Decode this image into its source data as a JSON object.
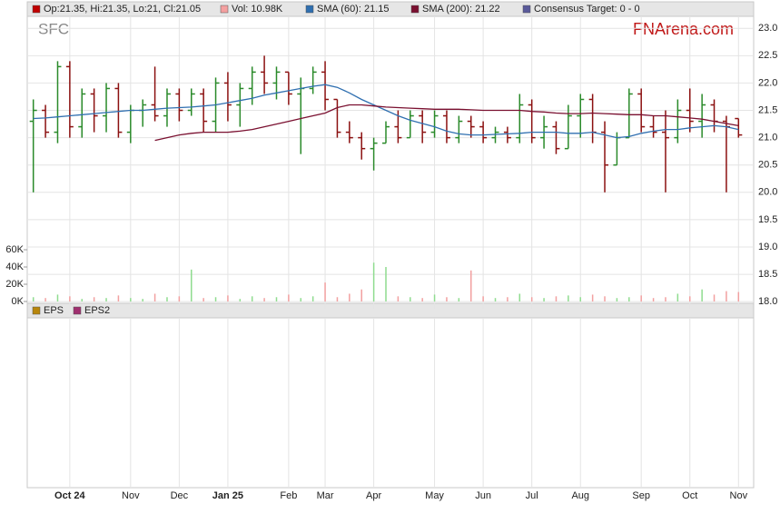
{
  "chart_data": {
    "type": "ohlc",
    "ticker": "SFC",
    "watermark": "FNArena.com",
    "legend": [
      {
        "label": "Op:21.35, Hi:21.35, Lo:21, Cl:21.05",
        "color": "#c00000"
      },
      {
        "label": "Vol: 10.98K",
        "color": "#f4a0a0"
      },
      {
        "label": "SMA (60): 21.15",
        "color": "#2f6fb0"
      },
      {
        "label": "SMA (200): 21.22",
        "color": "#7a1030"
      },
      {
        "label": "Consensus Target: 0 - 0",
        "color": "#5a5a9a"
      }
    ],
    "lower_legend": [
      {
        "label": "EPS",
        "color": "#b8860b"
      },
      {
        "label": "EPS2",
        "color": "#a03070"
      }
    ],
    "categories": [
      null,
      null,
      null,
      "Oct 24",
      null,
      null,
      null,
      null,
      "Nov",
      null,
      null,
      null,
      "Dec",
      null,
      null,
      null,
      "Jan 25",
      null,
      null,
      null,
      null,
      "Feb",
      null,
      null,
      "Mar",
      null,
      null,
      null,
      "Apr",
      null,
      null,
      null,
      null,
      "May",
      null,
      null,
      null,
      "Jun",
      null,
      null,
      null,
      "Jul",
      null,
      null,
      null,
      "Aug",
      null,
      null,
      null,
      null,
      "Sep",
      null,
      null,
      null,
      "Oct",
      null,
      null,
      null,
      "Nov"
    ],
    "open": [
      21.3,
      21.5,
      21.1,
      22.3,
      21.2,
      21.8,
      21.4,
      21.9,
      21.1,
      21.5,
      21.6,
      21.4,
      21.8,
      21.5,
      21.8,
      21.3,
      22.0,
      21.6,
      21.9,
      22.2,
      22.0,
      22.2,
      21.8,
      21.9,
      22.2,
      21.7,
      21.1,
      21.0,
      20.8,
      20.9,
      21.2,
      21.0,
      21.4,
      21.1,
      21.4,
      21.0,
      21.3,
      21.2,
      21.0,
      21.1,
      21.0,
      21.6,
      21.0,
      21.2,
      20.8,
      21.4,
      21.7,
      21.1,
      20.5,
      21.0,
      21.8,
      21.2,
      21.1,
      21.0,
      21.5,
      21.3,
      21.6,
      21.3,
      21.35
    ],
    "high": [
      21.7,
      21.6,
      22.4,
      22.4,
      21.9,
      21.9,
      22.0,
      22.0,
      21.6,
      21.7,
      22.3,
      21.9,
      21.9,
      21.9,
      21.9,
      22.1,
      22.2,
      22.0,
      22.3,
      22.5,
      22.3,
      22.2,
      22.1,
      22.3,
      22.4,
      21.7,
      21.3,
      21.1,
      21.0,
      21.3,
      21.5,
      21.5,
      21.5,
      21.5,
      21.5,
      21.4,
      21.4,
      21.3,
      21.2,
      21.2,
      21.8,
      21.7,
      21.4,
      21.3,
      21.6,
      21.8,
      21.8,
      21.3,
      21.1,
      21.9,
      21.9,
      21.4,
      21.5,
      21.7,
      21.9,
      21.8,
      21.7,
      21.4,
      21.35
    ],
    "low": [
      20.0,
      21.0,
      20.9,
      21.0,
      21.0,
      21.1,
      21.1,
      21.0,
      20.9,
      21.2,
      21.3,
      21.2,
      21.3,
      21.4,
      21.1,
      21.1,
      21.3,
      21.2,
      21.6,
      21.8,
      21.7,
      21.6,
      20.7,
      21.8,
      21.5,
      21.0,
      20.9,
      20.6,
      20.4,
      20.9,
      20.9,
      21.0,
      20.9,
      21.0,
      20.9,
      20.9,
      21.0,
      20.9,
      20.9,
      20.9,
      20.9,
      20.9,
      20.8,
      20.7,
      20.8,
      21.0,
      20.9,
      20.0,
      20.5,
      21.0,
      21.1,
      21.0,
      20.0,
      20.9,
      21.1,
      21.0,
      21.1,
      20.0,
      21.0
    ],
    "close": [
      21.5,
      21.1,
      22.3,
      21.2,
      21.8,
      21.4,
      21.9,
      21.1,
      21.5,
      21.6,
      21.4,
      21.8,
      21.5,
      21.8,
      21.3,
      22.0,
      21.6,
      21.9,
      22.2,
      22.0,
      22.2,
      21.8,
      21.9,
      22.2,
      21.7,
      21.1,
      21.0,
      20.8,
      20.9,
      21.2,
      21.0,
      21.4,
      21.1,
      21.4,
      21.0,
      21.3,
      21.2,
      21.0,
      21.1,
      21.0,
      21.6,
      21.0,
      21.2,
      20.8,
      21.4,
      21.7,
      21.1,
      20.5,
      21.0,
      21.8,
      21.2,
      21.1,
      21.0,
      21.5,
      21.3,
      21.6,
      21.3,
      21.2,
      21.05
    ],
    "up_color": "#2a8a2a",
    "down_color": "#8b1010",
    "volume": {
      "values": [
        5,
        4,
        8,
        6,
        3,
        5,
        4,
        7,
        4,
        3,
        9,
        5,
        6,
        37,
        4,
        5,
        7,
        3,
        6,
        4,
        5,
        8,
        4,
        6,
        22,
        5,
        9,
        14,
        45,
        40,
        6,
        5,
        4,
        8,
        5,
        4,
        36,
        6,
        4,
        5,
        9,
        5,
        4,
        6,
        7,
        5,
        8,
        6,
        4,
        5,
        7,
        4,
        5,
        9,
        6,
        14,
        8,
        12,
        10.98
      ],
      "up_color": "#8fdc8f",
      "down_color": "#f2a0a0"
    },
    "sma60": {
      "color": "#2f6fb0",
      "values": [
        21.35,
        21.36,
        21.38,
        21.4,
        21.42,
        21.44,
        21.46,
        21.48,
        21.5,
        21.5,
        21.52,
        21.54,
        21.55,
        21.56,
        21.58,
        21.6,
        21.64,
        21.68,
        21.72,
        21.78,
        21.82,
        21.86,
        21.9,
        21.94,
        21.97,
        21.92,
        21.82,
        21.7,
        21.6,
        21.5,
        21.4,
        21.32,
        21.26,
        21.2,
        21.12,
        21.07,
        21.05,
        21.05,
        21.06,
        21.07,
        21.08,
        21.1,
        21.1,
        21.1,
        21.08,
        21.08,
        21.1,
        21.05,
        21.0,
        21.02,
        21.08,
        21.12,
        21.15,
        21.15,
        21.18,
        21.2,
        21.22,
        21.2,
        21.15
      ]
    },
    "sma200": {
      "color": "#7a1030",
      "values": [
        null,
        null,
        null,
        null,
        null,
        null,
        null,
        null,
        null,
        null,
        20.95,
        21.0,
        21.05,
        21.08,
        21.1,
        21.1,
        21.1,
        21.12,
        21.15,
        21.2,
        21.25,
        21.3,
        21.35,
        21.4,
        21.45,
        21.55,
        21.6,
        21.6,
        21.58,
        21.56,
        21.55,
        21.54,
        21.53,
        21.52,
        21.52,
        21.52,
        21.51,
        21.5,
        21.5,
        21.5,
        21.5,
        21.48,
        21.47,
        21.45,
        21.44,
        21.44,
        21.45,
        21.44,
        21.43,
        21.42,
        21.42,
        21.4,
        21.4,
        21.38,
        21.36,
        21.34,
        21.3,
        21.26,
        21.22
      ]
    },
    "ylim": [
      17.87,
      23.22
    ],
    "yticks": [
      {
        "value": 18,
        "label": "18.0"
      },
      18.5,
      {
        "value": 19,
        "label": "19.0"
      },
      19.5,
      {
        "value": 20,
        "label": "20.0"
      },
      20.5,
      {
        "value": 21,
        "label": "21.0"
      },
      21.5,
      {
        "value": 22,
        "label": "22.0"
      },
      22.5,
      {
        "value": 23,
        "label": "23.0"
      }
    ],
    "y2lim": [
      0,
      60
    ],
    "y2ticks": [
      {
        "value": 0,
        "label": "0K"
      },
      {
        "value": 20,
        "label": "20K"
      },
      {
        "value": 40,
        "label": "40K"
      },
      {
        "value": 60,
        "label": "60K"
      }
    ],
    "grid": true
  }
}
